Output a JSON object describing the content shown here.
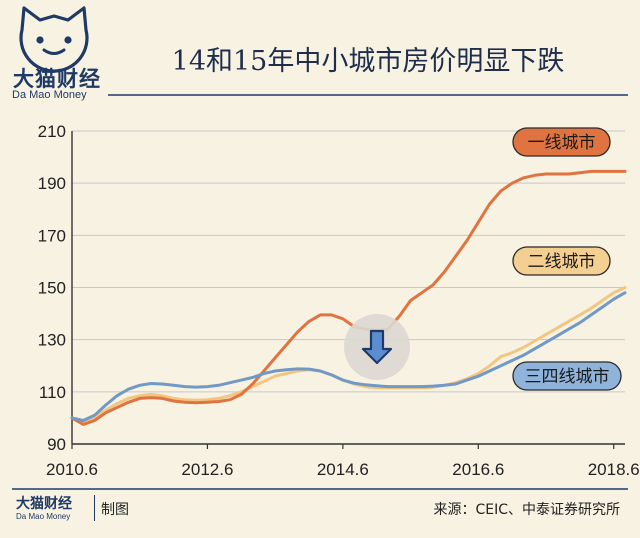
{
  "brand": {
    "name_cn": "大猫财经",
    "name_en": "Da Mao Money"
  },
  "title": "14和15年中小城市房价明显下跌",
  "footer": {
    "brand_cn": "大猫财经",
    "brand_en": "Da Mao Money",
    "tag": "制图",
    "source": "来源：CEIC、中泰证券研究所"
  },
  "colors": {
    "background": "#f8f2e3",
    "navy": "#1f3a66",
    "tier1": "#e07440",
    "tier2": "#f2c680",
    "tier34": "#7099c6",
    "grid": "#c8c8c8"
  },
  "icons": {
    "arrow": "down-arrow-icon",
    "logo": "cat-face-logo-icon"
  },
  "chart_data": {
    "type": "line",
    "title": "14和15年中小城市房价明显下跌",
    "xlabel": "",
    "ylabel": "",
    "ylim": [
      90,
      210
    ],
    "xlim": [
      0,
      98
    ],
    "yticks": [
      90,
      110,
      130,
      150,
      170,
      190,
      210
    ],
    "xticks": [
      {
        "i": 0,
        "label": "2010.6"
      },
      {
        "i": 24,
        "label": "2012.6"
      },
      {
        "i": 48,
        "label": "2014.6"
      },
      {
        "i": 72,
        "label": "2016.6"
      },
      {
        "i": 96,
        "label": "2018.6"
      }
    ],
    "grid": "horizontal",
    "x_note": "month index since 2010.6 (0 = 2010.6, 96 = 2018.6)",
    "series": [
      {
        "name": "一线城市",
        "color": "#e07440",
        "label_color": "#e07440",
        "label_text_color": "#1a1a1a",
        "points": [
          [
            0,
            100
          ],
          [
            2,
            97.5
          ],
          [
            4,
            99
          ],
          [
            6,
            102
          ],
          [
            8,
            104
          ],
          [
            10,
            106
          ],
          [
            12,
            107.5
          ],
          [
            14,
            107.8
          ],
          [
            16,
            107.5
          ],
          [
            18,
            106.5
          ],
          [
            20,
            106
          ],
          [
            22,
            105.8
          ],
          [
            24,
            106
          ],
          [
            26,
            106.3
          ],
          [
            28,
            107
          ],
          [
            30,
            109
          ],
          [
            32,
            113
          ],
          [
            34,
            118
          ],
          [
            36,
            123
          ],
          [
            38,
            128
          ],
          [
            40,
            133
          ],
          [
            42,
            137
          ],
          [
            44,
            139.5
          ],
          [
            46,
            139.5
          ],
          [
            48,
            138
          ],
          [
            50,
            135
          ],
          [
            52,
            134
          ],
          [
            54,
            133.5
          ],
          [
            56,
            134
          ],
          [
            58,
            139
          ],
          [
            60,
            145
          ],
          [
            62,
            148
          ],
          [
            64,
            151
          ],
          [
            66,
            156
          ],
          [
            68,
            162
          ],
          [
            70,
            168
          ],
          [
            72,
            175
          ],
          [
            74,
            182
          ],
          [
            76,
            187
          ],
          [
            78,
            190
          ],
          [
            80,
            192
          ],
          [
            82,
            193
          ],
          [
            84,
            193.5
          ],
          [
            86,
            193.5
          ],
          [
            88,
            193.5
          ],
          [
            90,
            194
          ],
          [
            92,
            194.5
          ],
          [
            94,
            194.5
          ],
          [
            96,
            194.5
          ],
          [
            98,
            194.5
          ]
        ]
      },
      {
        "name": "二线城市",
        "color": "#f2c680",
        "label_color": "#f4cf92",
        "label_text_color": "#1a1a1a",
        "points": [
          [
            0,
            100
          ],
          [
            2,
            98.5
          ],
          [
            4,
            100
          ],
          [
            6,
            103
          ],
          [
            8,
            105.5
          ],
          [
            10,
            107.5
          ],
          [
            12,
            108.5
          ],
          [
            14,
            109
          ],
          [
            16,
            108.5
          ],
          [
            18,
            107.5
          ],
          [
            20,
            107
          ],
          [
            22,
            106.8
          ],
          [
            24,
            107
          ],
          [
            26,
            107.5
          ],
          [
            28,
            108.5
          ],
          [
            30,
            110
          ],
          [
            32,
            112
          ],
          [
            34,
            114
          ],
          [
            36,
            116
          ],
          [
            38,
            117
          ],
          [
            40,
            118
          ],
          [
            42,
            118.5
          ],
          [
            44,
            118
          ],
          [
            46,
            116.5
          ],
          [
            48,
            114.5
          ],
          [
            50,
            113
          ],
          [
            52,
            112
          ],
          [
            54,
            111.5
          ],
          [
            56,
            111.5
          ],
          [
            58,
            111.5
          ],
          [
            60,
            111.5
          ],
          [
            62,
            111.5
          ],
          [
            64,
            111.8
          ],
          [
            66,
            112.5
          ],
          [
            68,
            113.5
          ],
          [
            70,
            115
          ],
          [
            72,
            117
          ],
          [
            74,
            120
          ],
          [
            76,
            123.5
          ],
          [
            78,
            125
          ],
          [
            80,
            127
          ],
          [
            82,
            129.5
          ],
          [
            84,
            132
          ],
          [
            86,
            134.5
          ],
          [
            88,
            137
          ],
          [
            90,
            139.5
          ],
          [
            92,
            142
          ],
          [
            94,
            145
          ],
          [
            96,
            148
          ],
          [
            98,
            150
          ]
        ]
      },
      {
        "name": "三四线城市",
        "color": "#7099c6",
        "label_color": "#8fb3da",
        "label_text_color": "#1a1a1a",
        "points": [
          [
            0,
            100
          ],
          [
            2,
            99
          ],
          [
            4,
            101
          ],
          [
            6,
            105
          ],
          [
            8,
            108.5
          ],
          [
            10,
            111
          ],
          [
            12,
            112.5
          ],
          [
            14,
            113.2
          ],
          [
            16,
            113
          ],
          [
            18,
            112.5
          ],
          [
            20,
            112
          ],
          [
            22,
            111.8
          ],
          [
            24,
            112
          ],
          [
            26,
            112.5
          ],
          [
            28,
            113.5
          ],
          [
            30,
            114.5
          ],
          [
            32,
            115.5
          ],
          [
            34,
            117
          ],
          [
            36,
            118
          ],
          [
            38,
            118.5
          ],
          [
            40,
            118.8
          ],
          [
            42,
            118.7
          ],
          [
            44,
            118
          ],
          [
            46,
            116.5
          ],
          [
            48,
            114.5
          ],
          [
            50,
            113.3
          ],
          [
            52,
            112.7
          ],
          [
            54,
            112.3
          ],
          [
            56,
            112
          ],
          [
            58,
            112
          ],
          [
            60,
            112
          ],
          [
            62,
            112
          ],
          [
            64,
            112.2
          ],
          [
            66,
            112.5
          ],
          [
            68,
            113
          ],
          [
            70,
            114.5
          ],
          [
            72,
            116
          ],
          [
            74,
            118
          ],
          [
            76,
            120
          ],
          [
            78,
            122
          ],
          [
            80,
            124
          ],
          [
            82,
            126.5
          ],
          [
            84,
            129
          ],
          [
            86,
            131.5
          ],
          [
            88,
            134
          ],
          [
            90,
            136.5
          ],
          [
            92,
            139.5
          ],
          [
            94,
            142.5
          ],
          [
            96,
            145.5
          ],
          [
            98,
            148
          ]
        ]
      }
    ]
  }
}
